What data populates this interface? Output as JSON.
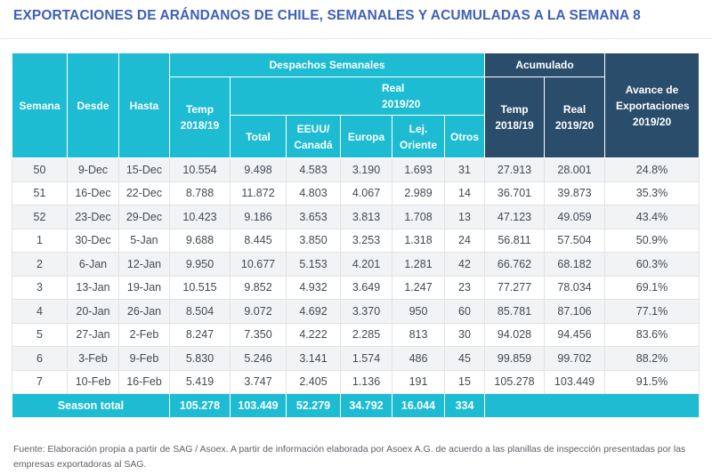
{
  "title": "EXPORTACIONES DE ARÁNDANOS DE CHILE, SEMANALES Y ACUMULADAS A LA SEMANA 8",
  "header": {
    "semana": "Semana",
    "desde": "Desde",
    "hasta": "Hasta",
    "despachos": "Despachos Semanales",
    "temp": "Temp 2018/19",
    "real": "Real 2019/20",
    "total": "Total",
    "eeuu": "EEUU/ Canadá",
    "europa": "Europa",
    "lejano": "Lej. Oriente",
    "otros": "Otros",
    "acumulado": "Acumulado",
    "acum_temp": "Temp 2018/19",
    "acum_real": "Real 2019/20",
    "avance": "Avance de Exportaciones 2019/20"
  },
  "rows": [
    {
      "semana": "50",
      "desde": "9-Dec",
      "hasta": "15-Dec",
      "temp": "10.554",
      "total": "9.498",
      "eeuu": "4.583",
      "europa": "3.190",
      "lejano": "1.693",
      "otros": "31",
      "acum_temp": "27.913",
      "acum_real": "28.001",
      "avance": "24.8%"
    },
    {
      "semana": "51",
      "desde": "16-Dec",
      "hasta": "22-Dec",
      "temp": "8.788",
      "total": "11.872",
      "eeuu": "4.803",
      "europa": "4.067",
      "lejano": "2.989",
      "otros": "14",
      "acum_temp": "36.701",
      "acum_real": "39.873",
      "avance": "35.3%"
    },
    {
      "semana": "52",
      "desde": "23-Dec",
      "hasta": "29-Dec",
      "temp": "10.423",
      "total": "9.186",
      "eeuu": "3.653",
      "europa": "3.813",
      "lejano": "1.708",
      "otros": "13",
      "acum_temp": "47.123",
      "acum_real": "49.059",
      "avance": "43.4%"
    },
    {
      "semana": "1",
      "desde": "30-Dec",
      "hasta": "5-Jan",
      "temp": "9.688",
      "total": "8.445",
      "eeuu": "3.850",
      "europa": "3.253",
      "lejano": "1.318",
      "otros": "24",
      "acum_temp": "56.811",
      "acum_real": "57.504",
      "avance": "50.9%"
    },
    {
      "semana": "2",
      "desde": "6-Jan",
      "hasta": "12-Jan",
      "temp": "9.950",
      "total": "10.677",
      "eeuu": "5.153",
      "europa": "4.201",
      "lejano": "1.281",
      "otros": "42",
      "acum_temp": "66.762",
      "acum_real": "68.182",
      "avance": "60.3%"
    },
    {
      "semana": "3",
      "desde": "13-Jan",
      "hasta": "19-Jan",
      "temp": "10.515",
      "total": "9.852",
      "eeuu": "4.932",
      "europa": "3.649",
      "lejano": "1.247",
      "otros": "23",
      "acum_temp": "77.277",
      "acum_real": "78.034",
      "avance": "69.1%"
    },
    {
      "semana": "4",
      "desde": "20-Jan",
      "hasta": "26-Jan",
      "temp": "8.504",
      "total": "9.072",
      "eeuu": "4.692",
      "europa": "3.370",
      "lejano": "950",
      "otros": "60",
      "acum_temp": "85.781",
      "acum_real": "87.106",
      "avance": "77.1%"
    },
    {
      "semana": "5",
      "desde": "27-Jan",
      "hasta": "2-Feb",
      "temp": "8.247",
      "total": "7.350",
      "eeuu": "4.222",
      "europa": "2.285",
      "lejano": "813",
      "otros": "30",
      "acum_temp": "94.028",
      "acum_real": "94.456",
      "avance": "83.6%"
    },
    {
      "semana": "6",
      "desde": "3-Feb",
      "hasta": "9-Feb",
      "temp": "5.830",
      "total": "5.246",
      "eeuu": "3.141",
      "europa": "1.574",
      "lejano": "486",
      "otros": "45",
      "acum_temp": "99.859",
      "acum_real": "99.702",
      "avance": "88.2%"
    },
    {
      "semana": "7",
      "desde": "10-Feb",
      "hasta": "16-Feb",
      "temp": "5.419",
      "total": "3.747",
      "eeuu": "2.405",
      "europa": "1.136",
      "lejano": "191",
      "otros": "15",
      "acum_temp": "105.278",
      "acum_real": "103.449",
      "avance": "91.5%"
    }
  ],
  "season_total": {
    "label": "Season total",
    "temp": "105.278",
    "total": "103.449",
    "eeuu": "52.279",
    "europa": "34.792",
    "lejano": "16.044",
    "otros": "334"
  },
  "footer": "Fuente: Elaboración propia a partir de SAG / Asoex. A partir de información elaborada por Asoex A.G. de acuerdo a las planillas de inspección presentadas por las empresas exportadoras al SAG.",
  "colors": {
    "title": "#3f61b4",
    "header_cyan": "#1dbcd3",
    "header_navy": "#2a4d6c",
    "row_alt": "#f1f3f5"
  }
}
